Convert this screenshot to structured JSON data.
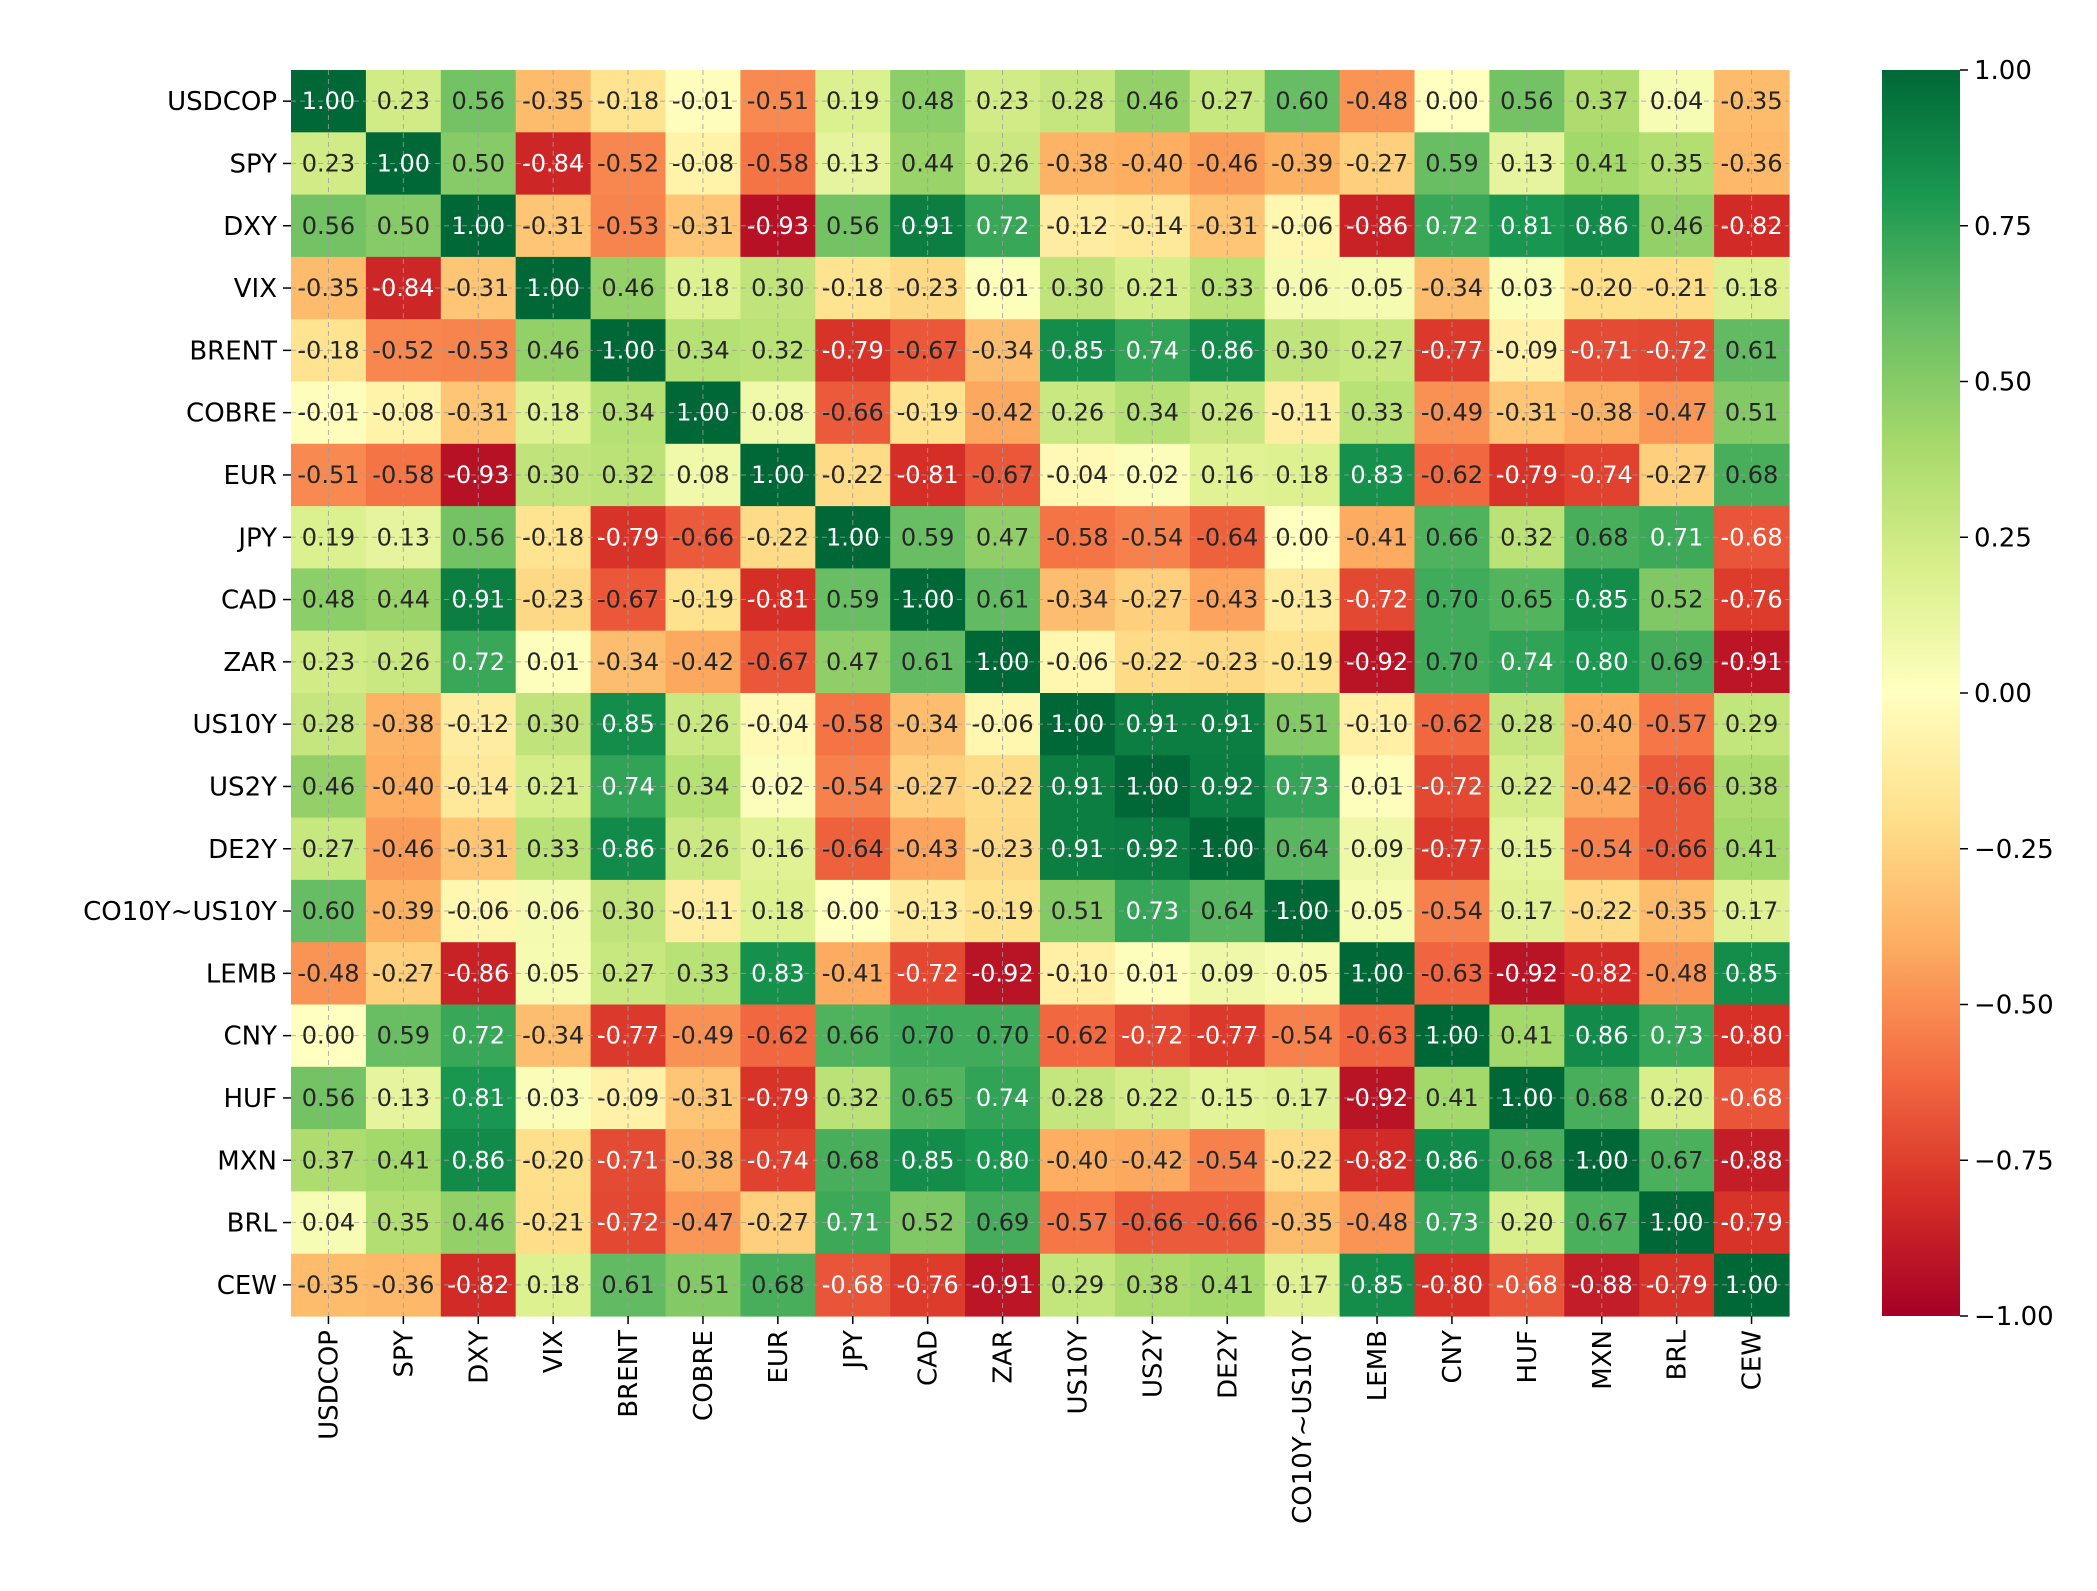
{
  "chart_data": {
    "type": "heatmap",
    "rows": [
      "USDCOP",
      "SPY",
      "DXY",
      "VIX",
      "BRENT",
      "COBRE",
      "EUR",
      "JPY",
      "CAD",
      "ZAR",
      "US10Y",
      "US2Y",
      "DE2Y",
      "CO10Y~US10Y",
      "LEMB",
      "CNY",
      "HUF",
      "MXN",
      "BRL",
      "CEW"
    ],
    "columns": [
      "USDCOP",
      "SPY",
      "DXY",
      "VIX",
      "BRENT",
      "COBRE",
      "EUR",
      "JPY",
      "CAD",
      "ZAR",
      "US10Y",
      "US2Y",
      "DE2Y",
      "CO10Y~US10Y",
      "LEMB",
      "CNY",
      "HUF",
      "MXN",
      "BRL",
      "CEW"
    ],
    "values": [
      [
        1.0,
        0.23,
        0.56,
        -0.35,
        -0.18,
        -0.01,
        -0.51,
        0.19,
        0.48,
        0.23,
        0.28,
        0.46,
        0.27,
        0.6,
        -0.48,
        0.0,
        0.56,
        0.37,
        0.04,
        -0.35
      ],
      [
        0.23,
        1.0,
        0.5,
        -0.84,
        -0.52,
        -0.08,
        -0.58,
        0.13,
        0.44,
        0.26,
        -0.38,
        -0.4,
        -0.46,
        -0.39,
        -0.27,
        0.59,
        0.13,
        0.41,
        0.35,
        -0.36
      ],
      [
        0.56,
        0.5,
        1.0,
        -0.31,
        -0.53,
        -0.31,
        -0.93,
        0.56,
        0.91,
        0.72,
        -0.12,
        -0.14,
        -0.31,
        -0.06,
        -0.86,
        0.72,
        0.81,
        0.86,
        0.46,
        -0.82
      ],
      [
        -0.35,
        -0.84,
        -0.31,
        1.0,
        0.46,
        0.18,
        0.3,
        -0.18,
        -0.23,
        0.01,
        0.3,
        0.21,
        0.33,
        0.06,
        0.05,
        -0.34,
        0.03,
        -0.2,
        -0.21,
        0.18
      ],
      [
        -0.18,
        -0.52,
        -0.53,
        0.46,
        1.0,
        0.34,
        0.32,
        -0.79,
        -0.67,
        -0.34,
        0.85,
        0.74,
        0.86,
        0.3,
        0.27,
        -0.77,
        -0.09,
        -0.71,
        -0.72,
        0.61
      ],
      [
        -0.01,
        -0.08,
        -0.31,
        0.18,
        0.34,
        1.0,
        0.08,
        -0.66,
        -0.19,
        -0.42,
        0.26,
        0.34,
        0.26,
        -0.11,
        0.33,
        -0.49,
        -0.31,
        -0.38,
        -0.47,
        0.51
      ],
      [
        -0.51,
        -0.58,
        -0.93,
        0.3,
        0.32,
        0.08,
        1.0,
        -0.22,
        -0.81,
        -0.67,
        -0.04,
        0.02,
        0.16,
        0.18,
        0.83,
        -0.62,
        -0.79,
        -0.74,
        -0.27,
        0.68
      ],
      [
        0.19,
        0.13,
        0.56,
        -0.18,
        -0.79,
        -0.66,
        -0.22,
        1.0,
        0.59,
        0.47,
        -0.58,
        -0.54,
        -0.64,
        0.0,
        -0.41,
        0.66,
        0.32,
        0.68,
        0.71,
        -0.68
      ],
      [
        0.48,
        0.44,
        0.91,
        -0.23,
        -0.67,
        -0.19,
        -0.81,
        0.59,
        1.0,
        0.61,
        -0.34,
        -0.27,
        -0.43,
        -0.13,
        -0.72,
        0.7,
        0.65,
        0.85,
        0.52,
        -0.76
      ],
      [
        0.23,
        0.26,
        0.72,
        0.01,
        -0.34,
        -0.42,
        -0.67,
        0.47,
        0.61,
        1.0,
        -0.06,
        -0.22,
        -0.23,
        -0.19,
        -0.92,
        0.7,
        0.74,
        0.8,
        0.69,
        -0.91
      ],
      [
        0.28,
        -0.38,
        -0.12,
        0.3,
        0.85,
        0.26,
        -0.04,
        -0.58,
        -0.34,
        -0.06,
        1.0,
        0.91,
        0.91,
        0.51,
        -0.1,
        -0.62,
        0.28,
        -0.4,
        -0.57,
        0.29
      ],
      [
        0.46,
        -0.4,
        -0.14,
        0.21,
        0.74,
        0.34,
        0.02,
        -0.54,
        -0.27,
        -0.22,
        0.91,
        1.0,
        0.92,
        0.73,
        0.01,
        -0.72,
        0.22,
        -0.42,
        -0.66,
        0.38
      ],
      [
        0.27,
        -0.46,
        -0.31,
        0.33,
        0.86,
        0.26,
        0.16,
        -0.64,
        -0.43,
        -0.23,
        0.91,
        0.92,
        1.0,
        0.64,
        0.09,
        -0.77,
        0.15,
        -0.54,
        -0.66,
        0.41
      ],
      [
        0.6,
        -0.39,
        -0.06,
        0.06,
        0.3,
        -0.11,
        0.18,
        0.0,
        -0.13,
        -0.19,
        0.51,
        0.73,
        0.64,
        1.0,
        0.05,
        -0.54,
        0.17,
        -0.22,
        -0.35,
        0.17
      ],
      [
        -0.48,
        -0.27,
        -0.86,
        0.05,
        0.27,
        0.33,
        0.83,
        -0.41,
        -0.72,
        -0.92,
        -0.1,
        0.01,
        0.09,
        0.05,
        1.0,
        -0.63,
        -0.92,
        -0.82,
        -0.48,
        0.85
      ],
      [
        0.0,
        0.59,
        0.72,
        -0.34,
        -0.77,
        -0.49,
        -0.62,
        0.66,
        0.7,
        0.7,
        -0.62,
        -0.72,
        -0.77,
        -0.54,
        -0.63,
        1.0,
        0.41,
        0.86,
        0.73,
        -0.8
      ],
      [
        0.56,
        0.13,
        0.81,
        0.03,
        -0.09,
        -0.31,
        -0.79,
        0.32,
        0.65,
        0.74,
        0.28,
        0.22,
        0.15,
        0.17,
        -0.92,
        0.41,
        1.0,
        0.68,
        0.2,
        -0.68
      ],
      [
        0.37,
        0.41,
        0.86,
        -0.2,
        -0.71,
        -0.38,
        -0.74,
        0.68,
        0.85,
        0.8,
        -0.4,
        -0.42,
        -0.54,
        -0.22,
        -0.82,
        0.86,
        0.68,
        1.0,
        0.67,
        -0.88
      ],
      [
        0.04,
        0.35,
        0.46,
        -0.21,
        -0.72,
        -0.47,
        -0.27,
        0.71,
        0.52,
        0.69,
        -0.57,
        -0.66,
        -0.66,
        -0.35,
        -0.48,
        0.73,
        0.2,
        0.67,
        1.0,
        -0.79
      ],
      [
        -0.35,
        -0.36,
        -0.82,
        0.18,
        0.61,
        0.51,
        0.68,
        -0.68,
        -0.76,
        -0.91,
        0.29,
        0.38,
        0.41,
        0.17,
        0.85,
        -0.8,
        -0.68,
        -0.88,
        -0.79,
        1.0
      ]
    ],
    "colormap": "RdYlGn",
    "vmin": -1.0,
    "vmax": 1.0,
    "colorbar_ticks": [
      "1.00",
      "0.75",
      "0.50",
      "0.25",
      "0.00",
      "−0.25",
      "−0.50",
      "−0.75",
      "−1.00"
    ],
    "colorbar_tick_values": [
      1.0,
      0.75,
      0.5,
      0.25,
      0.0,
      -0.25,
      -0.5,
      -0.75,
      -1.0
    ],
    "grid": true,
    "colorbar": "right",
    "annotations": true
  }
}
